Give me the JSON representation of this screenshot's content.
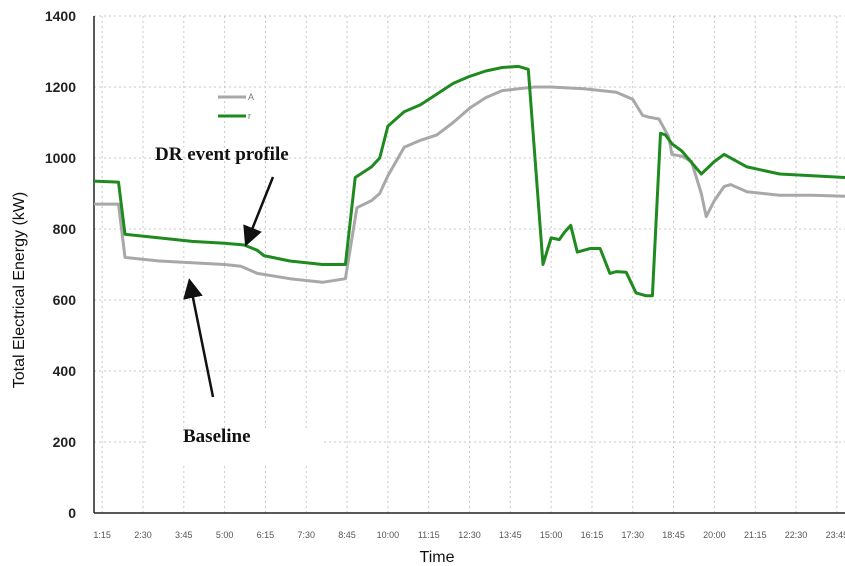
{
  "chart_data": {
    "type": "line",
    "title": "",
    "xlabel": "Time",
    "ylabel": "Total Electrical Energy (kW)",
    "ylim": [
      0,
      1400
    ],
    "xlim": [
      1.0,
      24.0
    ],
    "yticks": [
      0,
      200,
      400,
      600,
      800,
      1000,
      1200,
      1400
    ],
    "xticks": [
      {
        "v": 1.25,
        "label": "1:15"
      },
      {
        "v": 2.5,
        "label": "2:30"
      },
      {
        "v": 3.75,
        "label": "3:45"
      },
      {
        "v": 5.0,
        "label": "5:00"
      },
      {
        "v": 6.25,
        "label": "6:15"
      },
      {
        "v": 7.5,
        "label": "7:30"
      },
      {
        "v": 8.75,
        "label": "8:45"
      },
      {
        "v": 10.0,
        "label": "10:00"
      },
      {
        "v": 11.25,
        "label": "11:15"
      },
      {
        "v": 12.5,
        "label": "12:30"
      },
      {
        "v": 13.75,
        "label": "13:45"
      },
      {
        "v": 15.0,
        "label": "15:00"
      },
      {
        "v": 16.25,
        "label": "16:15"
      },
      {
        "v": 17.5,
        "label": "17:30"
      },
      {
        "v": 18.75,
        "label": "18:45"
      },
      {
        "v": 20.0,
        "label": "20:00"
      },
      {
        "v": 21.25,
        "label": "21:15"
      },
      {
        "v": 22.5,
        "label": "22:30"
      },
      {
        "v": 23.75,
        "label": "23:45"
      }
    ],
    "grid": true,
    "legend": {
      "position": "upper-left",
      "entries": [
        "A",
        "r"
      ]
    },
    "series": [
      {
        "name": "A",
        "color": "#a8a8a8",
        "points": [
          [
            1.0,
            870
          ],
          [
            1.75,
            870
          ],
          [
            1.95,
            720
          ],
          [
            3.0,
            710
          ],
          [
            4.0,
            705
          ],
          [
            5.0,
            700
          ],
          [
            5.5,
            695
          ],
          [
            6.0,
            675
          ],
          [
            7.0,
            660
          ],
          [
            8.0,
            650
          ],
          [
            8.7,
            660
          ],
          [
            9.05,
            860
          ],
          [
            9.5,
            880
          ],
          [
            9.75,
            900
          ],
          [
            10.0,
            950
          ],
          [
            10.5,
            1030
          ],
          [
            11.0,
            1050
          ],
          [
            11.5,
            1065
          ],
          [
            12.0,
            1100
          ],
          [
            12.5,
            1140
          ],
          [
            13.0,
            1170
          ],
          [
            13.5,
            1190
          ],
          [
            14.0,
            1195
          ],
          [
            14.5,
            1200
          ],
          [
            15.0,
            1200
          ],
          [
            16.0,
            1195
          ],
          [
            17.0,
            1185
          ],
          [
            17.5,
            1165
          ],
          [
            17.8,
            1120
          ],
          [
            18.0,
            1115
          ],
          [
            18.3,
            1110
          ],
          [
            18.6,
            1060
          ],
          [
            18.7,
            1010
          ],
          [
            19.0,
            1005
          ],
          [
            19.3,
            990
          ],
          [
            19.6,
            900
          ],
          [
            19.75,
            835
          ],
          [
            20.0,
            880
          ],
          [
            20.3,
            920
          ],
          [
            20.5,
            925
          ],
          [
            21.0,
            905
          ],
          [
            22.0,
            895
          ],
          [
            23.0,
            895
          ],
          [
            24.0,
            892
          ]
        ]
      },
      {
        "name": "r",
        "color": "#1f8a1f",
        "points": [
          [
            1.0,
            935
          ],
          [
            1.75,
            932
          ],
          [
            1.95,
            785
          ],
          [
            3.0,
            775
          ],
          [
            4.0,
            765
          ],
          [
            5.0,
            760
          ],
          [
            5.6,
            755
          ],
          [
            6.0,
            740
          ],
          [
            6.2,
            725
          ],
          [
            7.0,
            710
          ],
          [
            8.0,
            700
          ],
          [
            8.7,
            700
          ],
          [
            9.0,
            945
          ],
          [
            9.5,
            975
          ],
          [
            9.75,
            1000
          ],
          [
            10.0,
            1090
          ],
          [
            10.5,
            1130
          ],
          [
            11.0,
            1150
          ],
          [
            11.5,
            1180
          ],
          [
            12.0,
            1210
          ],
          [
            12.5,
            1230
          ],
          [
            13.0,
            1245
          ],
          [
            13.5,
            1255
          ],
          [
            14.0,
            1258
          ],
          [
            14.3,
            1250
          ],
          [
            14.75,
            700
          ],
          [
            15.0,
            775
          ],
          [
            15.25,
            770
          ],
          [
            15.4,
            790
          ],
          [
            15.6,
            810
          ],
          [
            15.8,
            735
          ],
          [
            16.2,
            745
          ],
          [
            16.5,
            745
          ],
          [
            16.8,
            675
          ],
          [
            17.0,
            680
          ],
          [
            17.3,
            678
          ],
          [
            17.6,
            620
          ],
          [
            17.9,
            612
          ],
          [
            18.1,
            612
          ],
          [
            18.35,
            1070
          ],
          [
            18.5,
            1065
          ],
          [
            18.7,
            1040
          ],
          [
            19.0,
            1020
          ],
          [
            19.6,
            955
          ],
          [
            20.0,
            990
          ],
          [
            20.3,
            1010
          ],
          [
            20.6,
            995
          ],
          [
            21.0,
            975
          ],
          [
            22.0,
            955
          ],
          [
            23.0,
            950
          ],
          [
            24.0,
            945
          ]
        ]
      }
    ],
    "annotations": [
      {
        "text": "DR event profile"
      },
      {
        "text": "Baseline"
      }
    ]
  }
}
